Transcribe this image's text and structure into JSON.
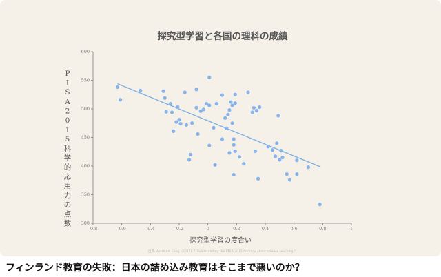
{
  "page": {
    "headline": "フィンランド教育の失敗：日本の詰め込み教育はそこまで悪いのか？"
  },
  "colors": {
    "card_background": "#f6f1e8",
    "point": "#86b3ea",
    "trend_line": "#7fb1e4",
    "axis": "#7d7d7d",
    "text": "#555555",
    "source_text": "#b8b3ab"
  },
  "chart_data": {
    "type": "scatter",
    "title": "探究型学習と各国の理科の成績",
    "xlabel": "探究型学習の度合い",
    "ylabel": "PISA 2015 科学的応用力の点数",
    "source": "出典: Aelsman, Greg. (2017). \"Understanding the PISA 2015 findings about science teaching.\"",
    "xlim": [
      -0.8,
      1.0
    ],
    "ylim": [
      300,
      600
    ],
    "x_ticks": [
      "-0.8",
      "-0.6",
      "-0.4",
      "-0.2",
      "0",
      "0.2",
      "0.4",
      "0.6",
      "0.8",
      "1"
    ],
    "y_ticks": [
      "300",
      "350",
      "400",
      "450",
      "500",
      "550",
      "600"
    ],
    "grid": false,
    "legend": "none",
    "trend_line": {
      "x": [
        -0.63,
        0.78
      ],
      "y": [
        544,
        399
      ]
    },
    "points": [
      {
        "x": -0.63,
        "y": 538
      },
      {
        "x": -0.61,
        "y": 516
      },
      {
        "x": -0.47,
        "y": 532
      },
      {
        "x": -0.31,
        "y": 531
      },
      {
        "x": -0.3,
        "y": 519
      },
      {
        "x": -0.29,
        "y": 495
      },
      {
        "x": -0.26,
        "y": 509
      },
      {
        "x": -0.25,
        "y": 494
      },
      {
        "x": -0.24,
        "y": 461
      },
      {
        "x": -0.22,
        "y": 477
      },
      {
        "x": -0.21,
        "y": 503
      },
      {
        "x": -0.2,
        "y": 481
      },
      {
        "x": -0.19,
        "y": 474
      },
      {
        "x": -0.16,
        "y": 529
      },
      {
        "x": -0.15,
        "y": 472
      },
      {
        "x": -0.13,
        "y": 411
      },
      {
        "x": -0.12,
        "y": 420
      },
      {
        "x": -0.11,
        "y": 475
      },
      {
        "x": -0.08,
        "y": 534
      },
      {
        "x": -0.08,
        "y": 502
      },
      {
        "x": -0.07,
        "y": 456
      },
      {
        "x": -0.05,
        "y": 496
      },
      {
        "x": -0.03,
        "y": 499
      },
      {
        "x": -0.01,
        "y": 509
      },
      {
        "x": 0.01,
        "y": 555
      },
      {
        "x": 0.01,
        "y": 506
      },
      {
        "x": 0.01,
        "y": 436
      },
      {
        "x": 0.04,
        "y": 467
      },
      {
        "x": 0.05,
        "y": 402
      },
      {
        "x": 0.06,
        "y": 509
      },
      {
        "x": 0.1,
        "y": 524
      },
      {
        "x": 0.1,
        "y": 447
      },
      {
        "x": 0.12,
        "y": 484
      },
      {
        "x": 0.13,
        "y": 466
      },
      {
        "x": 0.14,
        "y": 490
      },
      {
        "x": 0.15,
        "y": 498
      },
      {
        "x": 0.15,
        "y": 423
      },
      {
        "x": 0.16,
        "y": 512
      },
      {
        "x": 0.17,
        "y": 506
      },
      {
        "x": 0.17,
        "y": 475
      },
      {
        "x": 0.18,
        "y": 447
      },
      {
        "x": 0.18,
        "y": 437
      },
      {
        "x": 0.18,
        "y": 385
      },
      {
        "x": 0.19,
        "y": 525
      },
      {
        "x": 0.19,
        "y": 510
      },
      {
        "x": 0.19,
        "y": 426
      },
      {
        "x": 0.22,
        "y": 416
      },
      {
        "x": 0.25,
        "y": 404
      },
      {
        "x": 0.28,
        "y": 529
      },
      {
        "x": 0.31,
        "y": 494
      },
      {
        "x": 0.32,
        "y": 502
      },
      {
        "x": 0.33,
        "y": 426
      },
      {
        "x": 0.34,
        "y": 497
      },
      {
        "x": 0.35,
        "y": 378
      },
      {
        "x": 0.36,
        "y": 503
      },
      {
        "x": 0.42,
        "y": 434
      },
      {
        "x": 0.45,
        "y": 428
      },
      {
        "x": 0.47,
        "y": 417
      },
      {
        "x": 0.48,
        "y": 440
      },
      {
        "x": 0.49,
        "y": 488
      },
      {
        "x": 0.5,
        "y": 411
      },
      {
        "x": 0.51,
        "y": 427
      },
      {
        "x": 0.52,
        "y": 415
      },
      {
        "x": 0.55,
        "y": 386
      },
      {
        "x": 0.57,
        "y": 376
      },
      {
        "x": 0.62,
        "y": 410
      },
      {
        "x": 0.62,
        "y": 386
      },
      {
        "x": 0.7,
        "y": 398
      },
      {
        "x": 0.78,
        "y": 333
      }
    ]
  }
}
